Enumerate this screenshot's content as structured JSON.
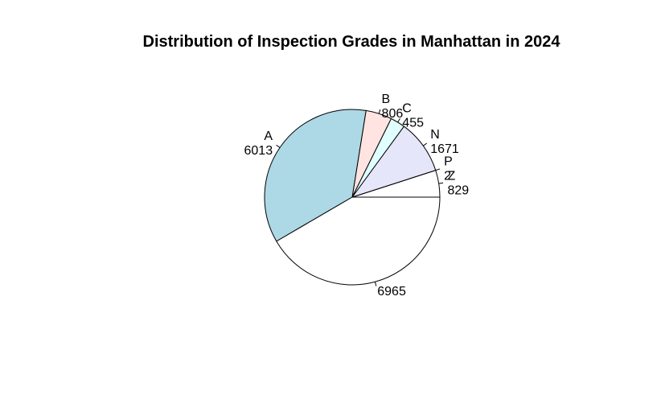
{
  "chart_data": {
    "type": "pie",
    "title": "Distribution of Inspection Grades in Manhattan in 2024",
    "slices": [
      {
        "label": "Z",
        "value": 829,
        "color": "#ffffff"
      },
      {
        "label": "P",
        "value": 2,
        "color": "#ffffff"
      },
      {
        "label": "N",
        "value": 1671,
        "color": "#e6e6fa"
      },
      {
        "label": "C",
        "value": 455,
        "color": "#e0ffff"
      },
      {
        "label": "B",
        "value": 806,
        "color": "#ffe4e1"
      },
      {
        "label": "A",
        "value": 6013,
        "color": "#add8e6"
      },
      {
        "label": "",
        "value": 6965,
        "color": "#ffffff"
      }
    ]
  }
}
